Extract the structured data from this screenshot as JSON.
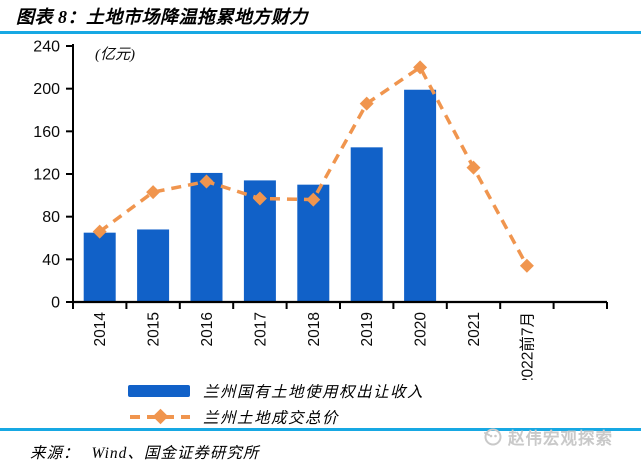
{
  "header": {
    "title": "图表 8：土地市场降温拖累地方财力"
  },
  "chart_data": {
    "type": "bar+line",
    "title": "图表 8：土地市场降温拖累地方财力",
    "unit_label": "(亿元)",
    "categories": [
      "2014",
      "2015",
      "2016",
      "2017",
      "2018",
      "2019",
      "2020",
      "2021",
      "2022前7月"
    ],
    "series": [
      {
        "name": "兰州国有土地使用权出让收入",
        "type": "bar",
        "color": "#1161C8",
        "values": [
          65,
          68,
          121,
          114,
          110,
          145,
          199,
          null,
          null
        ]
      },
      {
        "name": "兰州土地成交总价",
        "type": "line",
        "color": "#F0954E",
        "line_style": "dashed",
        "marker": "diamond",
        "values": [
          66,
          103,
          113,
          97,
          96,
          186,
          220,
          126,
          34
        ]
      }
    ],
    "ylim": [
      0,
      240
    ],
    "yticks": [
      0,
      40,
      80,
      120,
      160,
      200,
      240
    ],
    "grid": false,
    "legend_position": "bottom"
  },
  "footer": {
    "source_label": "来源：",
    "source_text": "Wind、国金证券研究所",
    "watermark": "赵伟宏观探索"
  },
  "colors": {
    "bar": "#1161C8",
    "line": "#F0954E",
    "divider": "#17A8E3",
    "watermark_gray": "#c9c9c9",
    "axis": "#000000"
  }
}
